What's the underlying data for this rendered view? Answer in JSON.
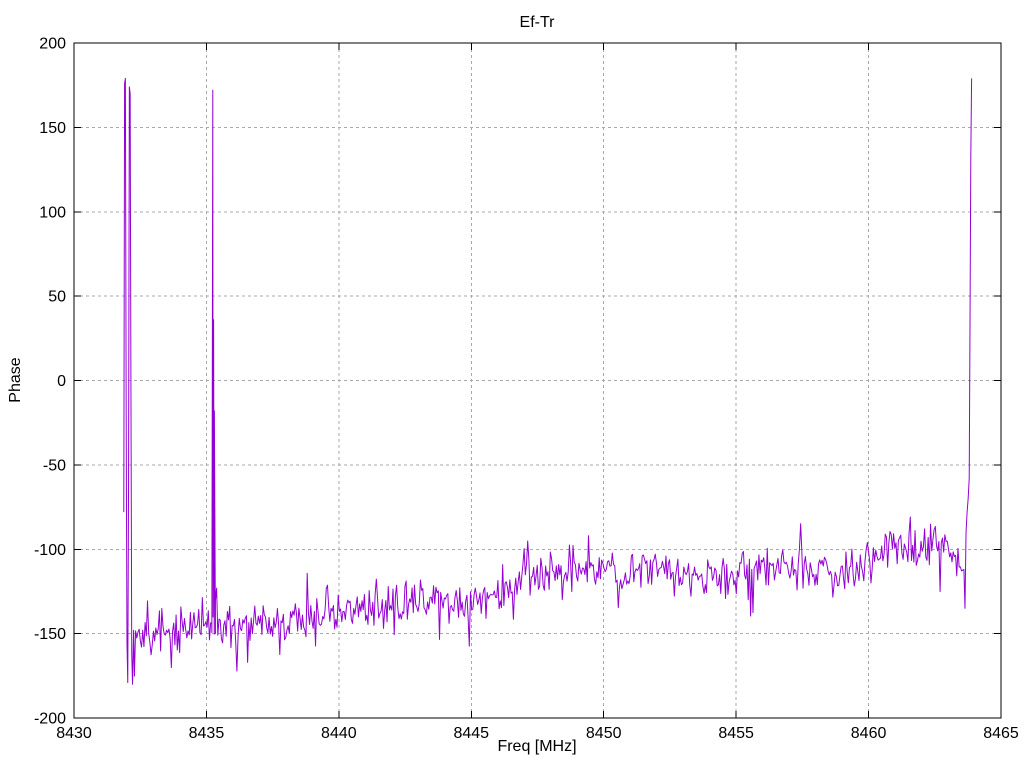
{
  "chart_data": {
    "type": "line",
    "title": "Ef-Tr",
    "xlabel": "Freq [MHz]",
    "ylabel": "Phase",
    "xlim": [
      8430,
      8465
    ],
    "ylim": [
      -200,
      200
    ],
    "xticks": [
      8430,
      8435,
      8440,
      8445,
      8450,
      8455,
      8460,
      8465
    ],
    "yticks": [
      -200,
      -150,
      -100,
      -50,
      0,
      50,
      100,
      150,
      200
    ],
    "grid": true,
    "grid_style": "dashed",
    "legend_position": "none",
    "styles": {
      "line_color": "#9400d3",
      "grid_color": "#a9a9a9",
      "border_color": "#000000",
      "text_color": "#000000",
      "background": "#ffffff"
    },
    "series": [
      {
        "name": "Ef-Tr",
        "color": "#9400d3",
        "description": "Noisy phase trace from 8431.9 to 8463.9 MHz; baseline rises from about -150 deg to about -100 deg, with full-scale phase-wrap spikes to about +180 deg near 8432.0, 8432.2, 8435.25 and 8463.9 MHz.",
        "segments": {
          "start_spikes": [
            [
              8431.88,
              -78
            ],
            [
              8431.91,
              176
            ],
            [
              8431.94,
              179
            ],
            [
              8431.97,
              -20
            ],
            [
              8432.0,
              -155
            ],
            [
              8432.03,
              -179
            ],
            [
              8432.06,
              -60
            ],
            [
              8432.09,
              174
            ],
            [
              8432.12,
              170
            ],
            [
              8432.15,
              -5
            ],
            [
              8432.18,
              -162
            ],
            [
              8432.21,
              -180
            ],
            [
              8432.25,
              -148
            ]
          ],
          "mid_spike": [
            [
              8435.2,
              -144
            ],
            [
              8435.24,
              172
            ],
            [
              8435.27,
              36
            ],
            [
              8435.3,
              -18
            ],
            [
              8435.34,
              -150
            ]
          ],
          "end_spike": [
            [
              8463.6,
              -112
            ],
            [
              8463.64,
              -135
            ],
            [
              8463.68,
              -90
            ],
            [
              8463.72,
              -78
            ],
            [
              8463.76,
              -70
            ],
            [
              8463.8,
              -58
            ],
            [
              8463.83,
              34
            ],
            [
              8463.86,
              133
            ],
            [
              8463.89,
              179
            ]
          ],
          "body": {
            "x_start": 8432.28,
            "x_end": 8463.55,
            "x_step": 0.045,
            "seed": 7,
            "noise_typical": 14,
            "noise_tail": 22,
            "clamp": [
              -182,
              -55
            ],
            "trend_anchors": [
              [
                8432.28,
                -152
              ],
              [
                8433,
                -153
              ],
              [
                8434,
                -149
              ],
              [
                8435,
                -146
              ],
              [
                8436,
                -148
              ],
              [
                8437,
                -145
              ],
              [
                8438,
                -143
              ],
              [
                8439,
                -140
              ],
              [
                8440,
                -137
              ],
              [
                8441,
                -136
              ],
              [
                8442,
                -133
              ],
              [
                8443,
                -133
              ],
              [
                8444,
                -130
              ],
              [
                8445,
                -134
              ],
              [
                8446,
                -126
              ],
              [
                8447,
                -118
              ],
              [
                8448,
                -114
              ],
              [
                8449,
                -112
              ],
              [
                8450,
                -111
              ],
              [
                8451,
                -114
              ],
              [
                8452,
                -112
              ],
              [
                8453,
                -117
              ],
              [
                8454,
                -116
              ],
              [
                8455,
                -114
              ],
              [
                8456,
                -112
              ],
              [
                8457,
                -109
              ],
              [
                8458,
                -114
              ],
              [
                8459,
                -110
              ],
              [
                8460,
                -104
              ],
              [
                8461,
                -100
              ],
              [
                8462,
                -98
              ],
              [
                8463,
                -99
              ],
              [
                8463.55,
                -108
              ]
            ]
          }
        }
      }
    ]
  }
}
